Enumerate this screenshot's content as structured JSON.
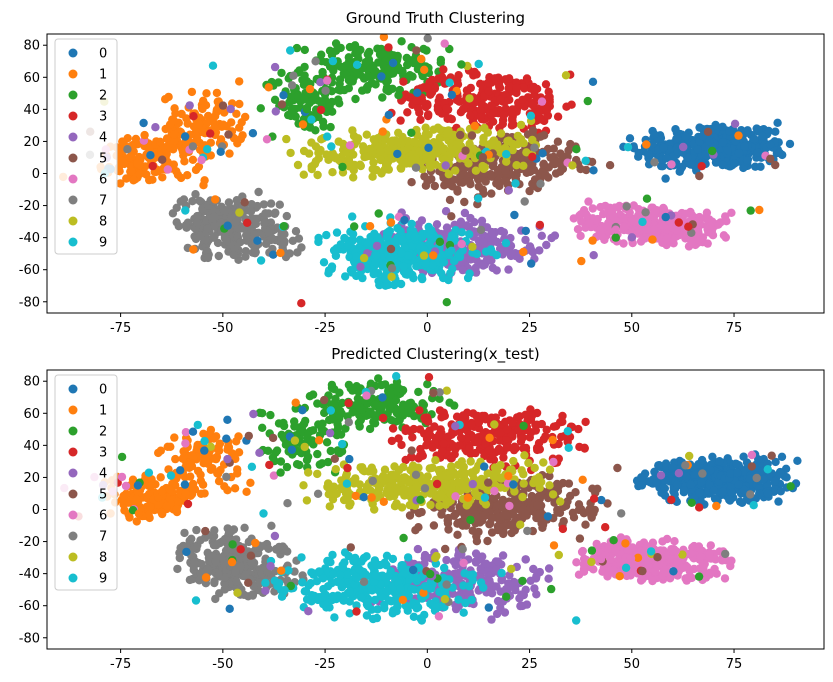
{
  "figure": {
    "background": "#ffffff"
  },
  "chart_data": [
    {
      "type": "scatter",
      "title": "Ground Truth Clustering",
      "xlabel": "",
      "ylabel": "",
      "xlim": [
        -93,
        97
      ],
      "ylim": [
        -87,
        87
      ],
      "xticks": [
        -75,
        -50,
        -25,
        0,
        25,
        50,
        75
      ],
      "yticks": [
        -80,
        -60,
        -40,
        -20,
        0,
        20,
        40,
        60,
        80
      ],
      "grid": false,
      "legend": {
        "placement": "top-left",
        "entries": [
          "0",
          "1",
          "2",
          "3",
          "4",
          "5",
          "6",
          "7",
          "8",
          "9"
        ]
      },
      "series": [
        {
          "name": "0",
          "color": "#1f77b4",
          "clusters": [
            {
              "cx": 70,
              "cy": 16,
              "sx": 9,
              "sy": 7,
              "n": 360,
              "rot": 0.12
            }
          ]
        },
        {
          "name": "1",
          "color": "#ff7f0e",
          "clusters": [
            {
              "cx": -68,
              "cy": 8,
              "sx": 6,
              "sy": 7,
              "n": 140,
              "rot": 0.2
            },
            {
              "cx": -55,
              "cy": 30,
              "sx": 5,
              "sy": 10,
              "n": 110,
              "rot": 0
            }
          ]
        },
        {
          "name": "2",
          "color": "#2ca02c",
          "clusters": [
            {
              "cx": -13,
              "cy": 65,
              "sx": 9,
              "sy": 8,
              "n": 170,
              "rot": 0
            },
            {
              "cx": -30,
              "cy": 45,
              "sx": 5,
              "sy": 10,
              "n": 90,
              "rot": 0
            }
          ]
        },
        {
          "name": "3",
          "color": "#d62728",
          "clusters": [
            {
              "cx": 15,
              "cy": 45,
              "sx": 11,
              "sy": 9,
              "n": 260,
              "rot": -0.1
            }
          ]
        },
        {
          "name": "4",
          "color": "#9467bd",
          "clusters": [
            {
              "cx": 8,
              "cy": -45,
              "sx": 10,
              "sy": 9,
              "n": 240,
              "rot": -0.35
            }
          ]
        },
        {
          "name": "5",
          "color": "#8c564b",
          "clusters": [
            {
              "cx": 18,
              "cy": 5,
              "sx": 11,
              "sy": 8,
              "n": 260,
              "rot": 0.55
            }
          ]
        },
        {
          "name": "6",
          "color": "#e377c2",
          "clusters": [
            {
              "cx": 55,
              "cy": -32,
              "sx": 9,
              "sy": 6,
              "n": 300,
              "rot": -0.2
            }
          ]
        },
        {
          "name": "7",
          "color": "#7f7f7f",
          "clusters": [
            {
              "cx": -47,
              "cy": -33,
              "sx": 7,
              "sy": 10,
              "n": 260,
              "rot": 0.25
            }
          ]
        },
        {
          "name": "8",
          "color": "#bcbd22",
          "clusters": [
            {
              "cx": -3,
              "cy": 14,
              "sx": 14,
              "sy": 7,
              "n": 320,
              "rot": 0.12
            }
          ]
        },
        {
          "name": "9",
          "color": "#17becf",
          "clusters": [
            {
              "cx": -7,
              "cy": -50,
              "sx": 10,
              "sy": 9,
              "n": 300,
              "rot": -0.45
            }
          ]
        }
      ],
      "noise_points": 220
    },
    {
      "type": "scatter",
      "title": "Predicted Clustering(x_test)",
      "xlabel": "",
      "ylabel": "",
      "xlim": [
        -93,
        97
      ],
      "ylim": [
        -87,
        87
      ],
      "xticks": [
        -75,
        -50,
        -25,
        0,
        25,
        50,
        75
      ],
      "yticks": [
        -80,
        -60,
        -40,
        -20,
        0,
        20,
        40,
        60,
        80
      ],
      "grid": false,
      "legend": {
        "placement": "top-left",
        "entries": [
          "0",
          "1",
          "2",
          "3",
          "4",
          "5",
          "6",
          "7",
          "8",
          "9"
        ]
      },
      "series": [
        {
          "name": "0",
          "color": "#1f77b4",
          "clusters": [
            {
              "cx": 70,
              "cy": 18,
              "sx": 9,
              "sy": 7,
              "n": 360,
              "rot": 0.12
            }
          ]
        },
        {
          "name": "1",
          "color": "#ff7f0e",
          "clusters": [
            {
              "cx": -68,
              "cy": 8,
              "sx": 6,
              "sy": 7,
              "n": 140,
              "rot": 0.2
            },
            {
              "cx": -55,
              "cy": 30,
              "sx": 5,
              "sy": 10,
              "n": 110,
              "rot": 0
            }
          ]
        },
        {
          "name": "2",
          "color": "#2ca02c",
          "clusters": [
            {
              "cx": -13,
              "cy": 65,
              "sx": 9,
              "sy": 8,
              "n": 170,
              "rot": 0
            },
            {
              "cx": -30,
              "cy": 45,
              "sx": 5,
              "sy": 10,
              "n": 90,
              "rot": 0
            }
          ]
        },
        {
          "name": "3",
          "color": "#d62728",
          "clusters": [
            {
              "cx": 15,
              "cy": 45,
              "sx": 11,
              "sy": 9,
              "n": 260,
              "rot": -0.1
            }
          ]
        },
        {
          "name": "4",
          "color": "#9467bd",
          "clusters": [
            {
              "cx": 8,
              "cy": -45,
              "sx": 10,
              "sy": 9,
              "n": 240,
              "rot": -0.35
            }
          ]
        },
        {
          "name": "5",
          "color": "#8c564b",
          "clusters": [
            {
              "cx": 20,
              "cy": 0,
              "sx": 12,
              "sy": 8,
              "n": 270,
              "rot": 0.5
            }
          ]
        },
        {
          "name": "6",
          "color": "#e377c2",
          "clusters": [
            {
              "cx": 55,
              "cy": -32,
              "sx": 9,
              "sy": 6,
              "n": 300,
              "rot": -0.2
            }
          ]
        },
        {
          "name": "7",
          "color": "#7f7f7f",
          "clusters": [
            {
              "cx": -47,
              "cy": -33,
              "sx": 7,
              "sy": 10,
              "n": 260,
              "rot": 0.25
            }
          ]
        },
        {
          "name": "8",
          "color": "#bcbd22",
          "clusters": [
            {
              "cx": 0,
              "cy": 16,
              "sx": 14,
              "sy": 7,
              "n": 320,
              "rot": 0.12
            }
          ]
        },
        {
          "name": "9",
          "color": "#17becf",
          "clusters": [
            {
              "cx": -12,
              "cy": -48,
              "sx": 12,
              "sy": 9,
              "n": 320,
              "rot": -0.45
            }
          ]
        }
      ],
      "noise_points": 220
    }
  ]
}
